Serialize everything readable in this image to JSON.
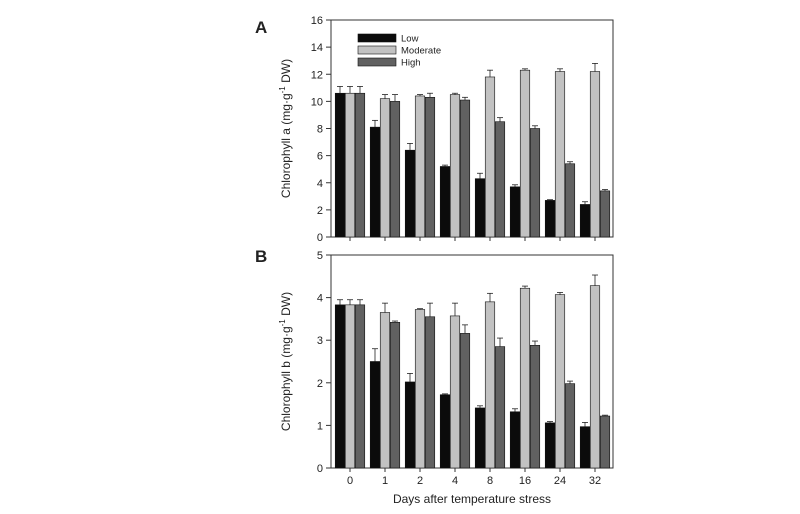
{
  "colors": {
    "Low": "#0b0b0b",
    "Moderate": "#c2c2c2",
    "High": "#616161",
    "axis": "#333333"
  },
  "xlabel": "Days after temperature stress",
  "chart_data": [
    {
      "panel": "A",
      "type": "bar",
      "ylabel_main": "Chlorophyll a (mg·g",
      "ylabel_sup": "-1",
      "ylabel_end": " DW)",
      "categories": [
        "0",
        "1",
        "2",
        "4",
        "8",
        "16",
        "24",
        "32"
      ],
      "ylim": [
        0,
        16
      ],
      "yticks": [
        0,
        2,
        4,
        6,
        8,
        10,
        12,
        14,
        16
      ],
      "legend": [
        "Low",
        "Moderate",
        "High"
      ],
      "legend_position": "top-left",
      "series": [
        {
          "name": "Low",
          "values": [
            10.6,
            8.1,
            6.4,
            5.2,
            4.3,
            3.7,
            2.7,
            2.4
          ],
          "errors": [
            0.5,
            0.5,
            0.5,
            0.1,
            0.4,
            0.15,
            0.05,
            0.2
          ]
        },
        {
          "name": "Moderate",
          "values": [
            10.6,
            10.2,
            10.4,
            10.5,
            11.8,
            12.3,
            12.2,
            12.2
          ],
          "errors": [
            0.5,
            0.3,
            0.1,
            0.1,
            0.5,
            0.1,
            0.2,
            0.6
          ]
        },
        {
          "name": "High",
          "values": [
            10.6,
            10.0,
            10.3,
            10.1,
            8.5,
            8.0,
            5.4,
            3.4
          ],
          "errors": [
            0.5,
            0.5,
            0.3,
            0.2,
            0.3,
            0.2,
            0.15,
            0.1
          ]
        }
      ]
    },
    {
      "panel": "B",
      "type": "bar",
      "ylabel_main": "Chlorophyll b (mg·g",
      "ylabel_sup": "-1",
      "ylabel_end": " DW)",
      "categories": [
        "0",
        "1",
        "2",
        "4",
        "8",
        "16",
        "24",
        "32"
      ],
      "ylim": [
        0,
        5
      ],
      "yticks": [
        0,
        1,
        2,
        3,
        4,
        5
      ],
      "series": [
        {
          "name": "Low",
          "values": [
            3.83,
            2.5,
            2.02,
            1.72,
            1.41,
            1.32,
            1.06,
            0.97
          ],
          "errors": [
            0.12,
            0.3,
            0.2,
            0.02,
            0.05,
            0.07,
            0.03,
            0.1
          ]
        },
        {
          "name": "Moderate",
          "values": [
            3.83,
            3.65,
            3.72,
            3.57,
            3.9,
            4.22,
            4.07,
            4.28
          ],
          "errors": [
            0.12,
            0.22,
            0.02,
            0.3,
            0.2,
            0.05,
            0.05,
            0.25
          ]
        },
        {
          "name": "High",
          "values": [
            3.83,
            3.42,
            3.55,
            3.16,
            2.85,
            2.88,
            1.98,
            1.22
          ],
          "errors": [
            0.12,
            0.03,
            0.32,
            0.2,
            0.2,
            0.1,
            0.06,
            0.02
          ]
        }
      ]
    }
  ]
}
